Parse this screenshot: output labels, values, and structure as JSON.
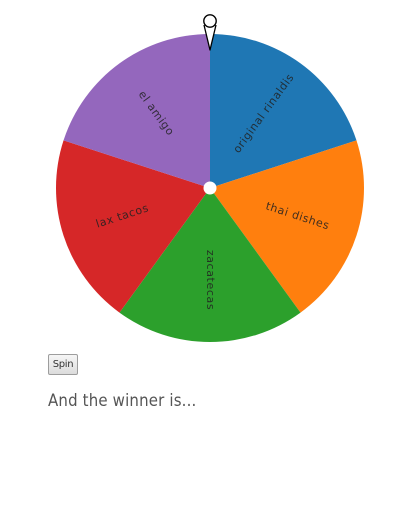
{
  "wheel": {
    "slices": [
      {
        "label": "original rinaldis",
        "color": "#1f77b4"
      },
      {
        "label": "thai dishes",
        "color": "#ff7f0e"
      },
      {
        "label": "zacatecas",
        "color": "#2ca02c"
      },
      {
        "label": "lax tacos",
        "color": "#d62728"
      },
      {
        "label": "el amigo",
        "color": "#9467bd"
      }
    ],
    "hub_color": "#ffffff",
    "pointer_color": "#000000"
  },
  "controls": {
    "spin_label": "Spin"
  },
  "result": {
    "winner_text": "And the winner is..."
  }
}
